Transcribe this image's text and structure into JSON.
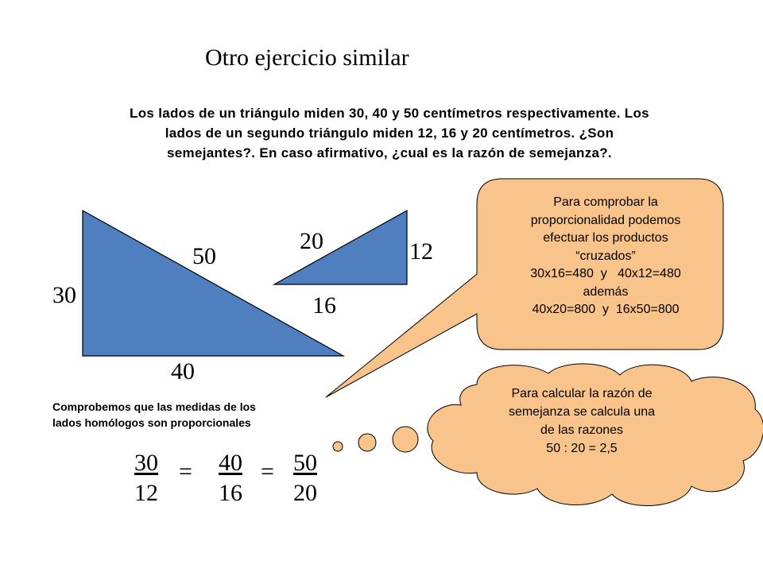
{
  "title": "Otro ejercicio similar",
  "problem": {
    "line1": "Los lados de un triángulo miden 30, 40 y 50 centímetros respectivamente. Los",
    "line2": "lados de un segundo triángulo miden 12, 16 y 20 centímetros. ¿Son",
    "line3": "semejantes?. En caso afirmativo, ¿cual es la razón de semejanza?."
  },
  "big_triangle": {
    "side_vertical": "30",
    "side_horizontal": "40",
    "hypotenuse": "50",
    "fill": "#4f7fbf"
  },
  "small_triangle": {
    "side_vertical": "12",
    "side_horizontal": "16",
    "hypotenuse": "20",
    "fill": "#4f7fbf"
  },
  "check_text": {
    "line1": "Comprobemos que las medidas de los",
    "line2": "lados homólogos son proporcionales"
  },
  "ratios": [
    {
      "num": "30",
      "den": "12"
    },
    {
      "num": "40",
      "den": "16"
    },
    {
      "num": "50",
      "den": "20"
    }
  ],
  "equals": "=",
  "speech_bubble": {
    "fill": "#f9c48b",
    "lines": [
      "Para comprobar la",
      "proporcionalidad podemos",
      "efectuar los productos",
      "“cruzados”",
      "30x16=480  y   40x12=480",
      "además",
      "40x20=800  y  16x50=800"
    ]
  },
  "thought_cloud": {
    "fill": "#f9c48b",
    "lines": [
      "Para calcular la razón de",
      "semejanza se calcula una",
      "de las razones",
      "50 : 20 = 2,5"
    ]
  }
}
